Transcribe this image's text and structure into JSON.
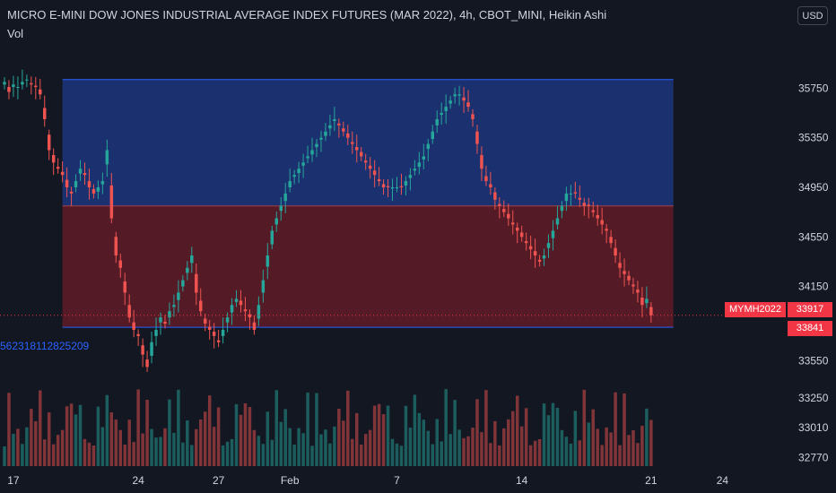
{
  "header": {
    "title": "MICRO E-MINI DOW JONES INDUSTRIAL AVERAGE INDEX FUTURES (MAR 2022), 4h, CBOT_MINI, Heikin Ashi",
    "volume_label": "Vol",
    "currency": "USD"
  },
  "overlay": {
    "band_label": "562318112825209",
    "symbol_badge": "MYMH2022",
    "last_price": "33917",
    "second_price": "33841"
  },
  "colors": {
    "background": "#131722",
    "up": "#26a69a",
    "down": "#ef5350",
    "band_upper": "#1e3a8a",
    "band_lower": "#6b1e2a",
    "band_line": "#2962ff"
  },
  "chart_data": {
    "type": "candlestick",
    "price_axis": {
      "ticks": [
        35750,
        35350,
        34950,
        34550,
        34150,
        33550,
        33250,
        33010,
        32770
      ],
      "range": [
        32700,
        36100
      ]
    },
    "x_axis": {
      "ticks": [
        {
          "label": "17",
          "bar": 2
        },
        {
          "label": "24",
          "bar": 30
        },
        {
          "label": "27",
          "bar": 48
        },
        {
          "label": "Feb",
          "bar": 64
        },
        {
          "label": "7",
          "bar": 88
        },
        {
          "label": "14",
          "bar": 116
        },
        {
          "label": "21",
          "bar": 145
        },
        {
          "label": "24",
          "bar": 161
        }
      ]
    },
    "bands": {
      "upper": [
        35820,
        34800
      ],
      "lower": [
        34800,
        33820
      ]
    },
    "closes": [
      35800,
      35720,
      35780,
      35760,
      35800,
      35820,
      35780,
      35760,
      35700,
      35500,
      35250,
      35150,
      35100,
      35050,
      34950,
      34900,
      35000,
      35100,
      35050,
      34950,
      34900,
      34950,
      35000,
      35250,
      34700,
      34400,
      34300,
      34100,
      33900,
      33800,
      33750,
      33600,
      33500,
      33700,
      33800,
      33900,
      33850,
      33950,
      34000,
      34100,
      34200,
      34300,
      34400,
      34100,
      33950,
      33850,
      33800,
      33750,
      33700,
      33800,
      33900,
      34000,
      34050,
      34000,
      33950,
      33900,
      33800,
      34000,
      34200,
      34400,
      34600,
      34700,
      34800,
      34900,
      35000,
      35050,
      35100,
      35150,
      35200,
      35250,
      35300,
      35350,
      35400,
      35450,
      35500,
      35450,
      35400,
      35350,
      35300,
      35250,
      35200,
      35150,
      35100,
      35050,
      35000,
      34950,
      34950,
      34950,
      34950,
      34950,
      35000,
      35050,
      35100,
      35150,
      35200,
      35300,
      35400,
      35500,
      35550,
      35600,
      35650,
      35700,
      35700,
      35650,
      35600,
      35500,
      35300,
      35100,
      35000,
      34950,
      34850,
      34800,
      34750,
      34700,
      34650,
      34600,
      34550,
      34500,
      34450,
      34400,
      34350,
      34400,
      34500,
      34600,
      34700,
      34800,
      34900,
      34900,
      34900,
      34850,
      34800,
      34800,
      34750,
      34700,
      34650,
      34600,
      34500,
      34400,
      34300,
      34250,
      34200,
      34150,
      34100,
      34000,
      34050,
      33917
    ],
    "volume_axis_max": 33300
  }
}
